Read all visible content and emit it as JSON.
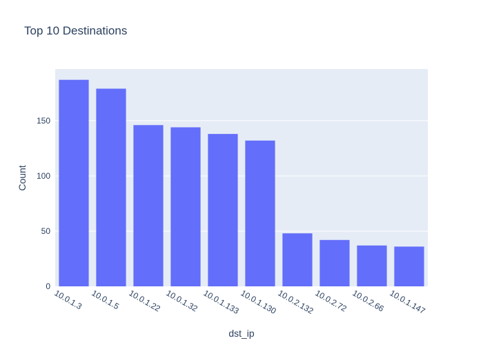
{
  "chart_data": {
    "type": "bar",
    "title": "Top 10 Destinations",
    "xlabel": "dst_ip",
    "ylabel": "Count",
    "categories": [
      "10.0.1.3",
      "10.0.1.5",
      "10.0.1.22",
      "10.0.1.32",
      "10.0.1.133",
      "10.0.1.130",
      "10.0.2.132",
      "10.0.2.72",
      "10.0.2.66",
      "10.0.1.147"
    ],
    "values": [
      187,
      179,
      146,
      144,
      138,
      132,
      48,
      42,
      37,
      36
    ],
    "ylim": [
      0,
      196.8
    ],
    "yticks": [
      0,
      50,
      100,
      150
    ],
    "grid": true,
    "colors": {
      "bar": "#636efa",
      "plot_bg": "#e5ecf6",
      "grid": "#ffffff",
      "text": "#2a3f5f"
    }
  }
}
